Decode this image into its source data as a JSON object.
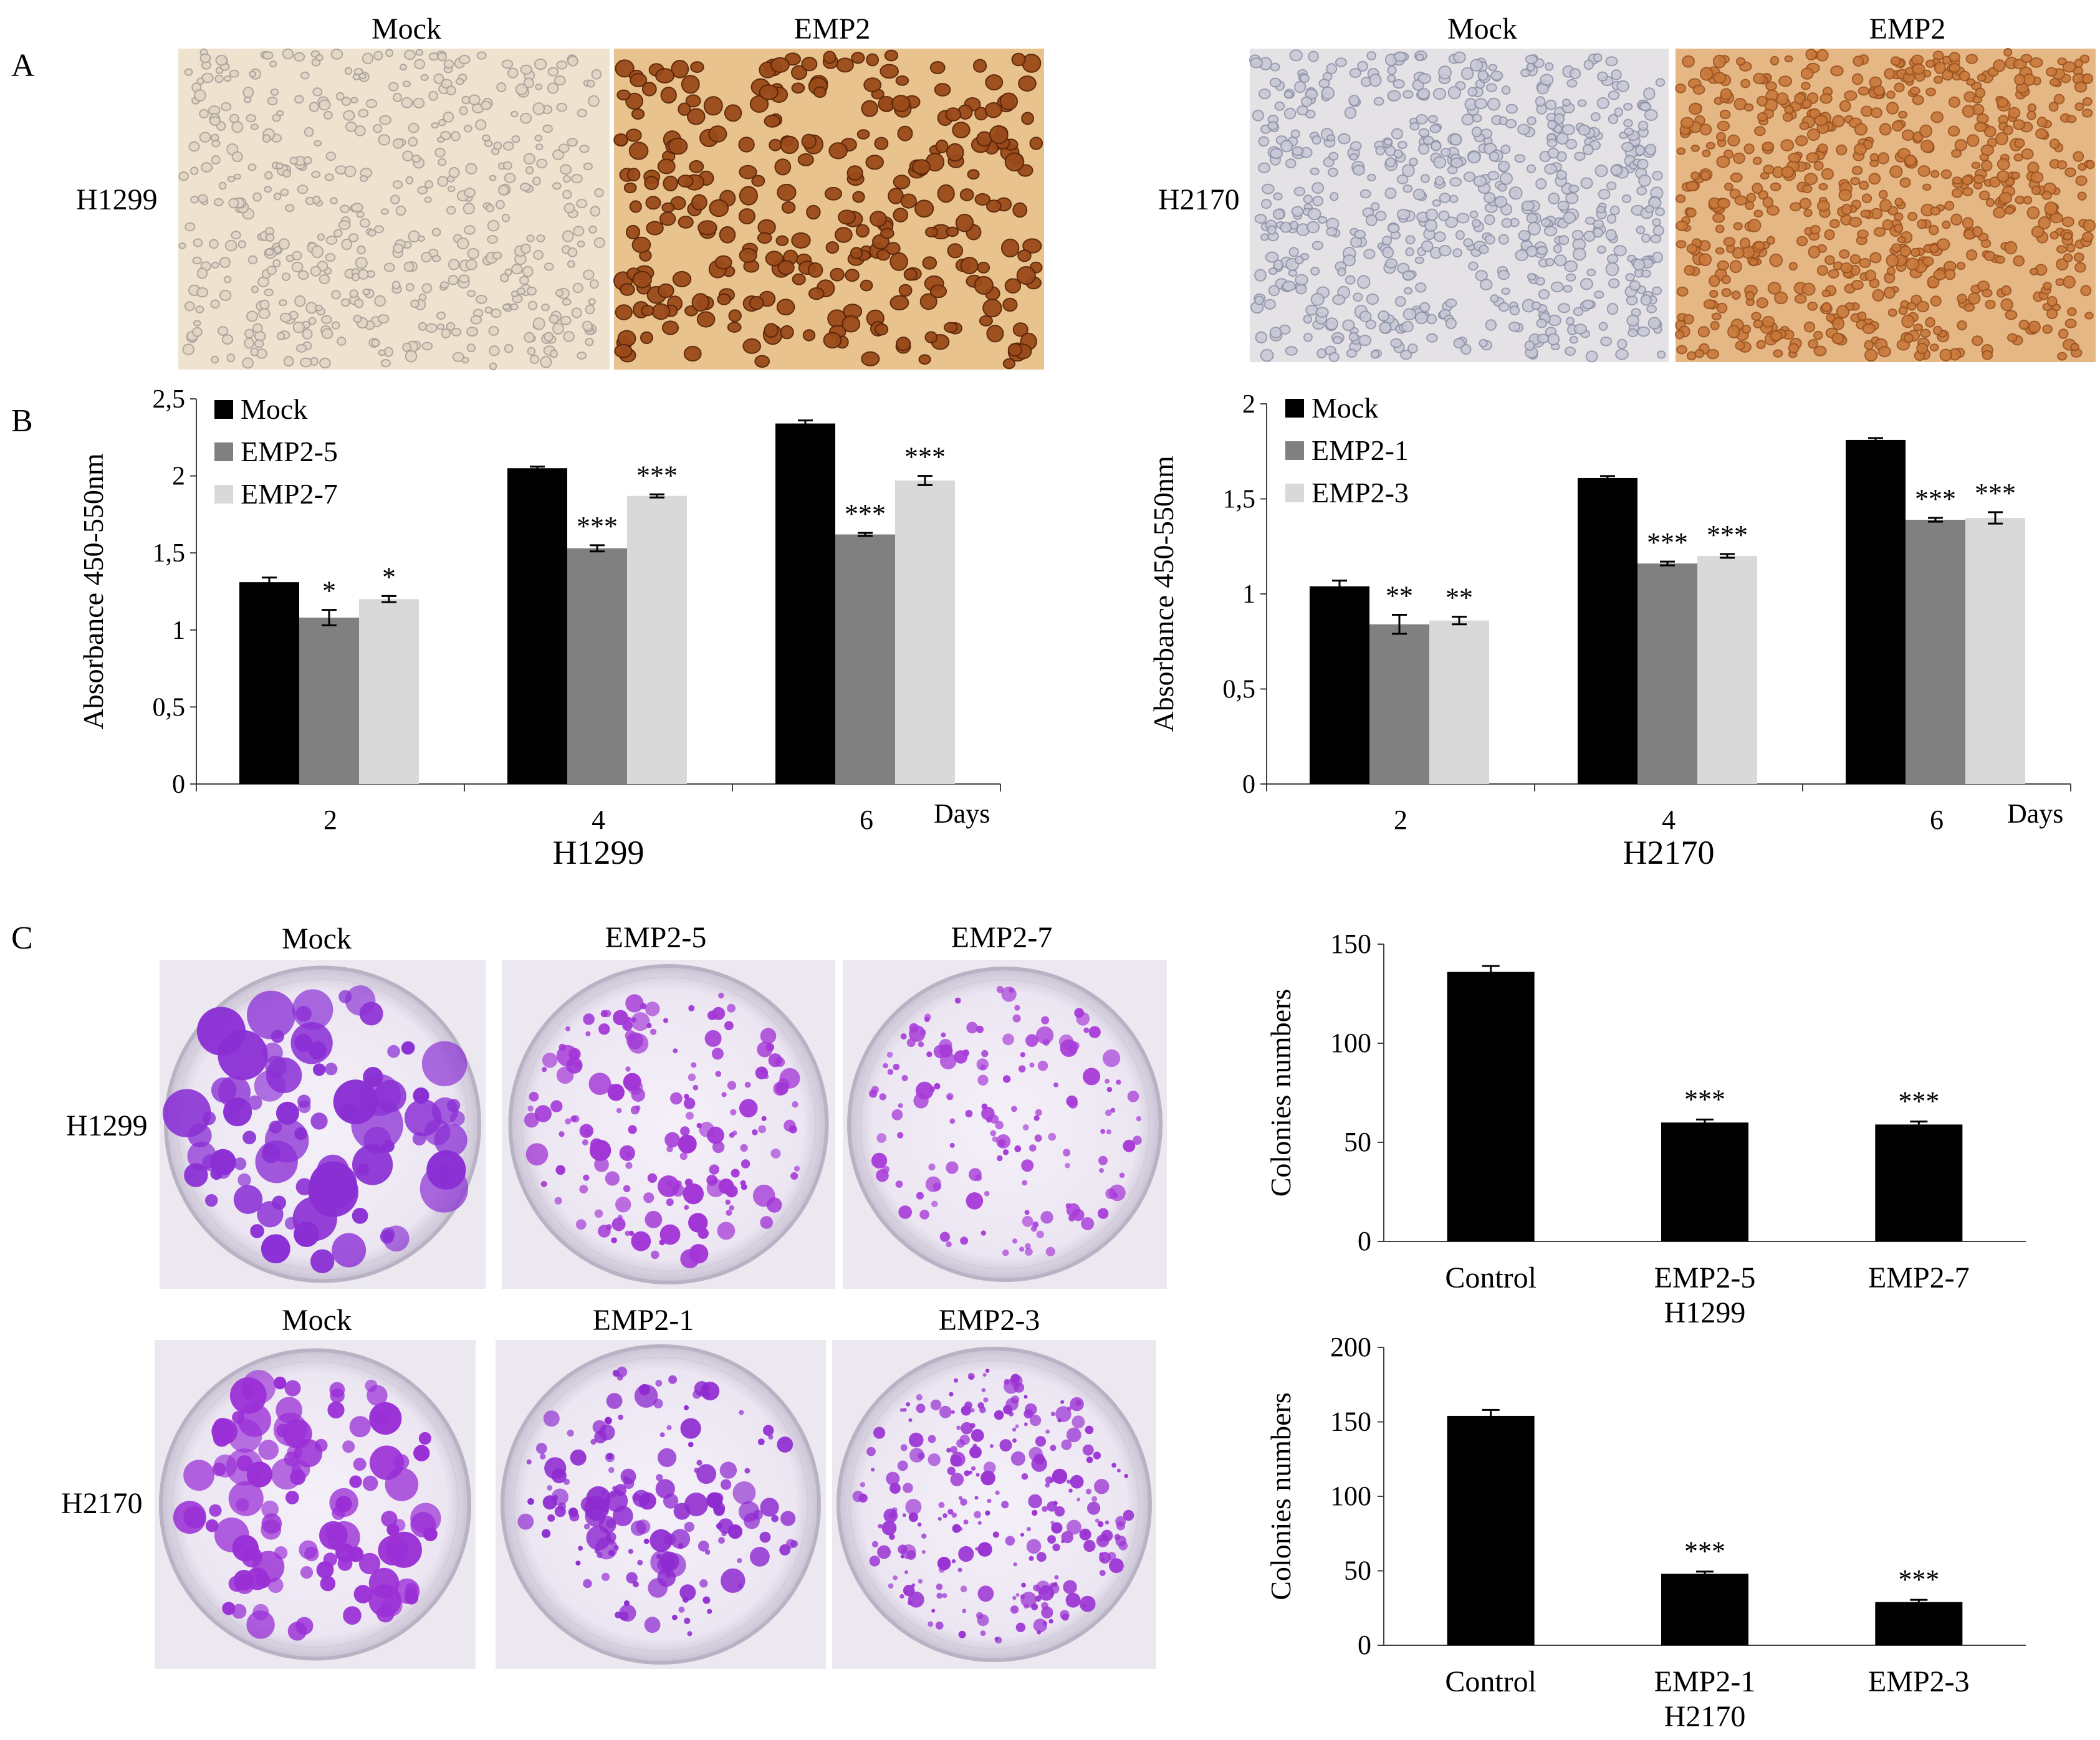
{
  "colors": {
    "mock": "#000000",
    "dark_grey": "#808080",
    "light_grey": "#d9d9d9",
    "ihc_mock_bg": "#efe3cf",
    "ihc_emp2_bg": "#e9c38e",
    "ihc_emp2_cells": "#8a3c14",
    "crystal_violet": "#9b30d8",
    "plate_bg": "#ede9f2"
  },
  "panel_A": {
    "letter": "A",
    "h1299": {
      "row_label": "H1299",
      "left_header": "Mock",
      "right_header": "EMP2"
    },
    "h2170": {
      "row_label": "H2170",
      "left_header": "Mock",
      "right_header": "EMP2"
    }
  },
  "panel_B": {
    "letter": "B"
  },
  "panel_C": {
    "letter": "C",
    "row_h1299": {
      "label": "H1299",
      "headers": [
        "Mock",
        "EMP2-5",
        "EMP2-7"
      ]
    },
    "row_h2170": {
      "label": "H2170",
      "headers": [
        "Mock",
        "EMP2-1",
        "EMP2-3"
      ]
    }
  },
  "chart_data": [
    {
      "id": "B_H1299",
      "type": "bar",
      "categories": [
        "2",
        "4",
        "6"
      ],
      "xunit": "Days",
      "xlabel": "H1299",
      "ylabel": "Absorbance 450-550nm",
      "ylim": [
        0,
        2.5
      ],
      "yticks": [
        "0",
        "0,5",
        "1",
        "1,5",
        "2",
        "2,5"
      ],
      "legend_position": "top-left",
      "series": [
        {
          "name": "Mock",
          "color": "#000000",
          "values": [
            1.31,
            2.05,
            2.34
          ],
          "errors": [
            0.03,
            0.01,
            0.02
          ],
          "sig": [
            "",
            "",
            ""
          ]
        },
        {
          "name": "EMP2-5",
          "color": "#808080",
          "values": [
            1.08,
            1.53,
            1.62
          ],
          "errors": [
            0.05,
            0.02,
            0.01
          ],
          "sig": [
            "*",
            "***",
            "***"
          ]
        },
        {
          "name": "EMP2-7",
          "color": "#d9d9d9",
          "values": [
            1.2,
            1.87,
            1.97
          ],
          "errors": [
            0.02,
            0.01,
            0.03
          ],
          "sig": [
            "*",
            "***",
            "***"
          ]
        }
      ]
    },
    {
      "id": "B_H2170",
      "type": "bar",
      "categories": [
        "2",
        "4",
        "6"
      ],
      "xunit": "Days",
      "xlabel": "H2170",
      "ylabel": "Absorbance 450-550nm",
      "ylim": [
        0,
        2
      ],
      "yticks": [
        "0",
        "0,5",
        "1",
        "1,5",
        "2"
      ],
      "legend_position": "top-left",
      "series": [
        {
          "name": "Mock",
          "color": "#000000",
          "values": [
            1.04,
            1.61,
            1.81
          ],
          "errors": [
            0.03,
            0.01,
            0.01
          ],
          "sig": [
            "",
            "",
            ""
          ]
        },
        {
          "name": "EMP2-1",
          "color": "#808080",
          "values": [
            0.84,
            1.16,
            1.39
          ],
          "errors": [
            0.05,
            0.01,
            0.01
          ],
          "sig": [
            "**",
            "***",
            "***"
          ]
        },
        {
          "name": "EMP2-3",
          "color": "#d9d9d9",
          "values": [
            0.86,
            1.2,
            1.4
          ],
          "errors": [
            0.02,
            0.01,
            0.03
          ],
          "sig": [
            "**",
            "***",
            "***"
          ]
        }
      ]
    },
    {
      "id": "C_H1299",
      "type": "bar",
      "categories": [
        "Control",
        "EMP2-5",
        "EMP2-7"
      ],
      "group_label": "H1299",
      "ylabel": "Colonies numbers",
      "ylim": [
        0,
        150
      ],
      "yticks": [
        "0",
        "50",
        "100",
        "150"
      ],
      "values": [
        136,
        60,
        59
      ],
      "errors": [
        3,
        1.5,
        1.5
      ],
      "sig": [
        "",
        "***",
        "***"
      ],
      "color": "#000000"
    },
    {
      "id": "C_H2170",
      "type": "bar",
      "categories": [
        "Control",
        "EMP2-1",
        "EMP2-3"
      ],
      "group_label": "H2170",
      "ylabel": "Colonies numbers",
      "ylim": [
        0,
        200
      ],
      "yticks": [
        "0",
        "50",
        "100",
        "150",
        "200"
      ],
      "values": [
        154,
        48,
        29
      ],
      "errors": [
        4,
        1.5,
        1.5
      ],
      "sig": [
        "",
        "***",
        "***"
      ],
      "color": "#000000"
    }
  ]
}
